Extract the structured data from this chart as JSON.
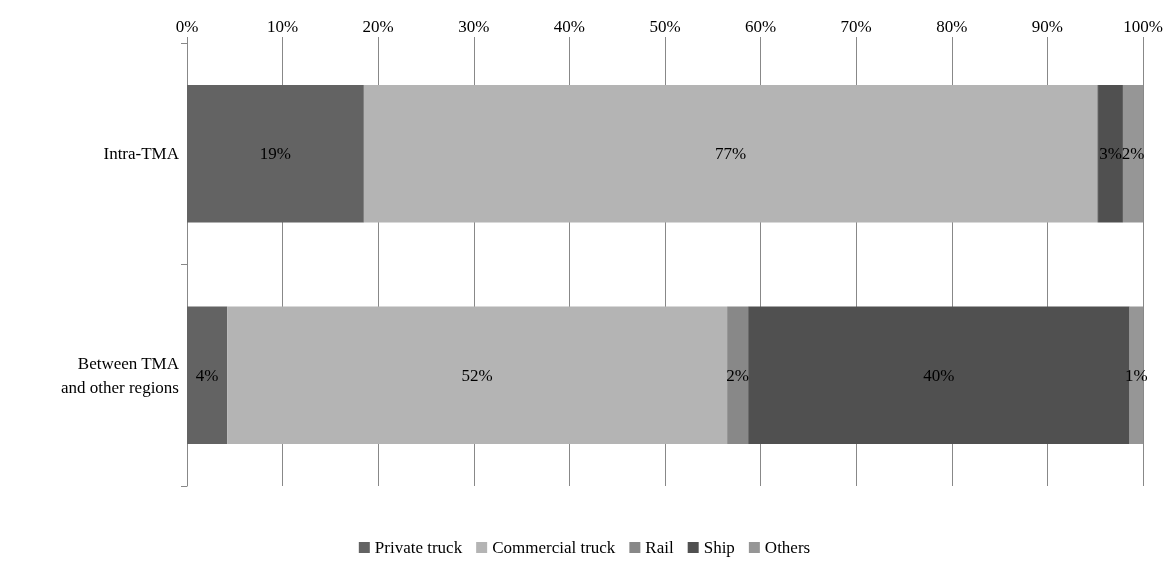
{
  "chart_data": {
    "type": "bar",
    "orientation": "horizontal",
    "stacked": true,
    "categories": [
      "Intra-TMA",
      "Between TMA\nand other regions"
    ],
    "series": [
      {
        "name": "Private truck",
        "color": "#636363",
        "values": [
          18.5,
          4.2
        ],
        "value_labels": [
          "19%",
          "4%"
        ]
      },
      {
        "name": "Commercial truck",
        "color": "#b4b4b4",
        "values": [
          76.7,
          52.3
        ],
        "value_labels": [
          "77%",
          "52%"
        ]
      },
      {
        "name": "Rail",
        "color": "#888888",
        "values": [
          0.1,
          2.2
        ],
        "value_labels": [
          null,
          "2%"
        ]
      },
      {
        "name": "Ship",
        "color": "#505050",
        "values": [
          2.6,
          39.9
        ],
        "value_labels": [
          "3%",
          "40%"
        ]
      },
      {
        "name": "Others",
        "color": "#969696",
        "values": [
          2.1,
          1.4
        ],
        "value_labels": [
          "2%",
          "1%"
        ]
      }
    ],
    "xlim": [
      0,
      100
    ],
    "xticks": [
      {
        "value": 0,
        "label": "0%"
      },
      {
        "value": 10,
        "label": "10%"
      },
      {
        "value": 20,
        "label": "20%"
      },
      {
        "value": 30,
        "label": "30%"
      },
      {
        "value": 40,
        "label": "40%"
      },
      {
        "value": 50,
        "label": "50%"
      },
      {
        "value": 60,
        "label": "60%"
      },
      {
        "value": 70,
        "label": "70%"
      },
      {
        "value": 80,
        "label": "80%"
      },
      {
        "value": 90,
        "label": "90%"
      },
      {
        "value": 100,
        "label": "100%"
      }
    ],
    "grid": "x",
    "legend": "bottom"
  }
}
